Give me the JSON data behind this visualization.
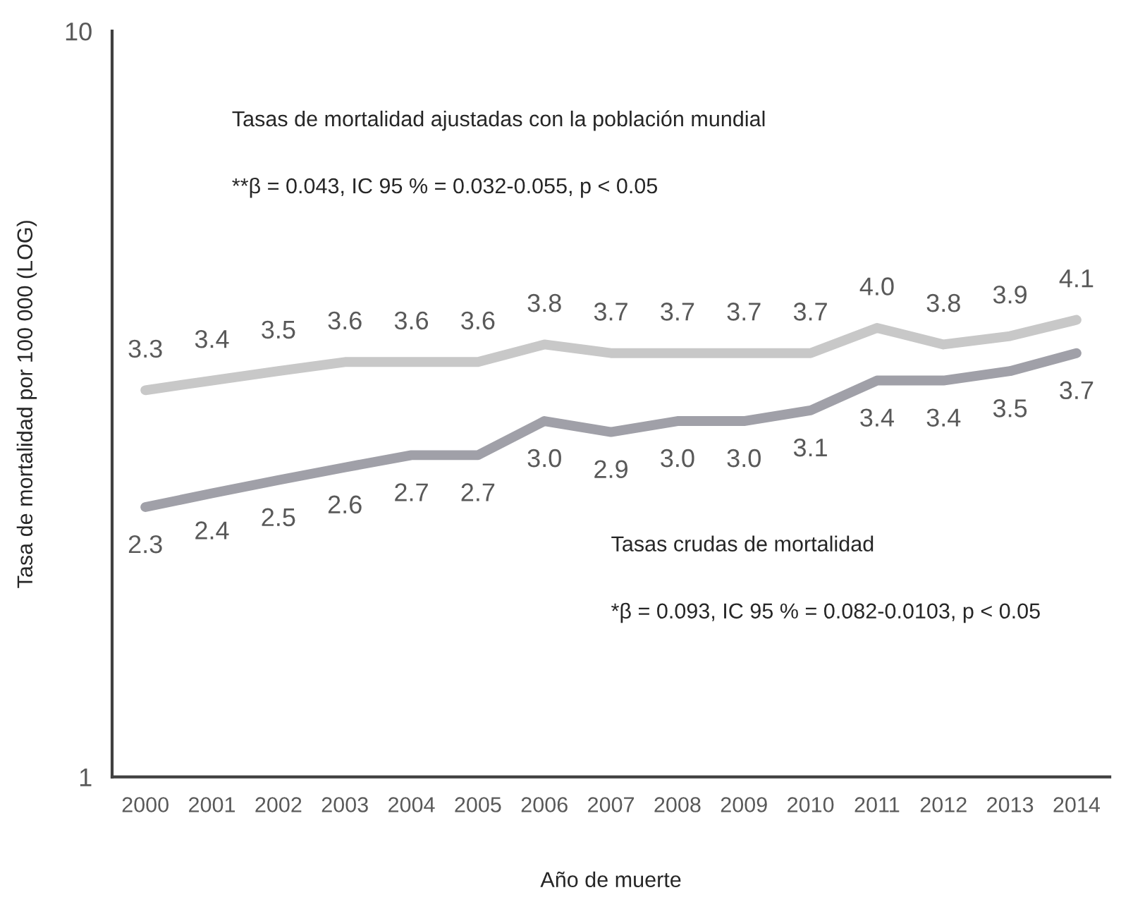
{
  "chart_data": {
    "type": "line",
    "xlabel": "Año de muerte",
    "ylabel": "Tasa de mortalidad por 100 000 (LOG)",
    "categories": [
      "2000",
      "2001",
      "2002",
      "2003",
      "2004",
      "2005",
      "2006",
      "2007",
      "2008",
      "2009",
      "2010",
      "2011",
      "2012",
      "2013",
      "2014"
    ],
    "series": [
      {
        "color": "#c8c8c8",
        "values": [
          3.3,
          3.4,
          3.5,
          3.6,
          3.6,
          3.6,
          3.8,
          3.7,
          3.7,
          3.7,
          3.7,
          4.0,
          3.8,
          3.9,
          4.1
        ],
        "value_labels": [
          "3.3",
          "3.4",
          "3.5",
          "3.6",
          "3.6",
          "3.6",
          "3.8",
          "3.7",
          "3.7",
          "3.7",
          "3.7",
          "4.0",
          "3.8",
          "3.9",
          "4.1"
        ]
      },
      {
        "color": "#a0a0a8",
        "values": [
          2.3,
          2.4,
          2.5,
          2.6,
          2.7,
          2.7,
          3.0,
          2.9,
          3.0,
          3.0,
          3.1,
          3.4,
          3.4,
          3.5,
          3.7
        ],
        "value_labels": [
          "2.3",
          "2.4",
          "2.5",
          "2.6",
          "2.7",
          "2.7",
          "3.0",
          "2.9",
          "3.0",
          "3.0",
          "3.1",
          "3.4",
          "3.4",
          "3.5",
          "3.7"
        ]
      }
    ],
    "log": true,
    "ylim": [
      1,
      10
    ],
    "yticks": [
      1,
      10
    ],
    "grid": false,
    "legend": false,
    "marker": "none",
    "line_style": "solid",
    "annotations": [
      "Tasas de mortalidad ajustadas con la población mundial",
      "**β = 0.043, IC 95 % = 0.032-0.055, p < 0.05",
      "Tasas crudas de mortalidad",
      "*β = 0.093, IC 95 % = 0.082-0.0103, p < 0.05"
    ]
  }
}
